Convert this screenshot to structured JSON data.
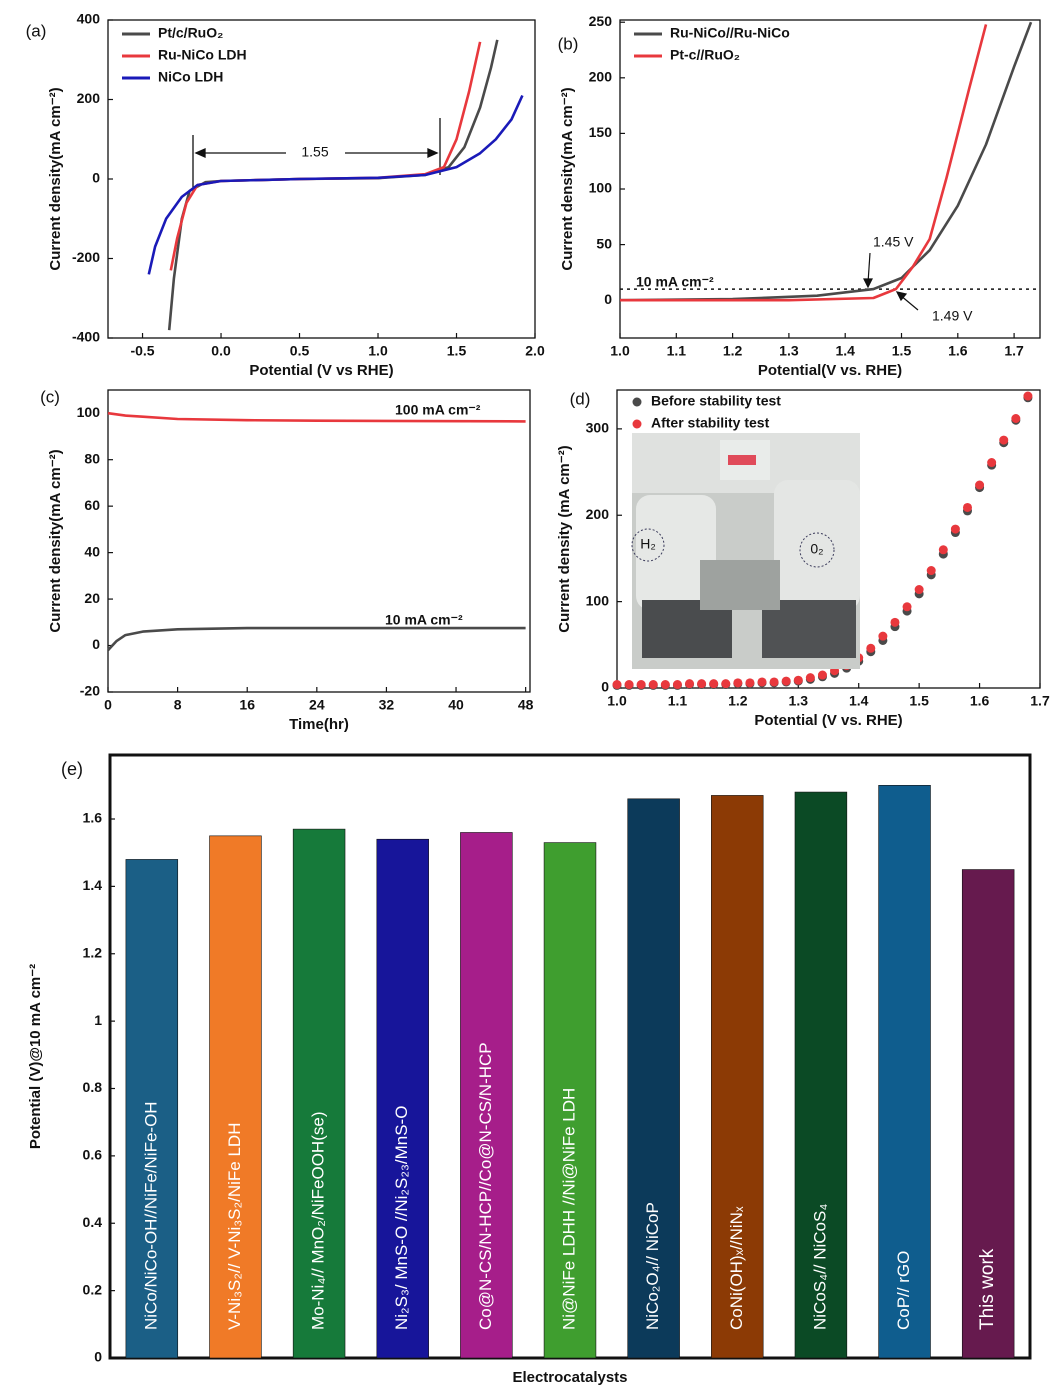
{
  "chart_data": [
    {
      "type": "line",
      "label": "(a)",
      "x_label": "Potential (V vs RHE)",
      "y_label": "Current density(mA cm⁻²)",
      "xlim": [
        -0.72,
        2.0
      ],
      "xticks": [
        -0.5,
        {
          "value": 0,
          "label": "0.0"
        },
        0.5,
        {
          "value": 1,
          "label": "1.0"
        },
        1.5,
        {
          "value": 2,
          "label": "2.0"
        }
      ],
      "ylim": [
        -400,
        400
      ],
      "yticks": [
        -400,
        -200,
        0,
        200,
        400
      ],
      "legend": "top-left",
      "annotations": [
        "1.55"
      ],
      "series": [
        {
          "name": "Pt/c/RuO₂",
          "color": "#4a4a4a",
          "x": [
            -0.33,
            -0.3,
            -0.25,
            -0.2,
            -0.1,
            0,
            0.5,
            1.0,
            1.3,
            1.45,
            1.55,
            1.65,
            1.72,
            1.76
          ],
          "values": [
            -380,
            -250,
            -100,
            -30,
            -8,
            -5,
            0,
            2,
            10,
            30,
            80,
            180,
            280,
            350
          ]
        },
        {
          "name": "Ru-NiCo LDH",
          "color": "#e8383d",
          "x": [
            -0.32,
            -0.28,
            -0.22,
            -0.15,
            0,
            0.5,
            1.0,
            1.3,
            1.42,
            1.5,
            1.58,
            1.65
          ],
          "values": [
            -230,
            -150,
            -60,
            -15,
            -5,
            0,
            3,
            12,
            30,
            100,
            220,
            345
          ]
        },
        {
          "name": "NiCo LDH",
          "color": "#1a1ab8",
          "x": [
            -0.46,
            -0.42,
            -0.35,
            -0.25,
            -0.15,
            0,
            0.5,
            1.0,
            1.3,
            1.5,
            1.65,
            1.75,
            1.85,
            1.92
          ],
          "values": [
            -240,
            -170,
            -100,
            -45,
            -15,
            -5,
            0,
            3,
            10,
            30,
            65,
            100,
            150,
            210
          ]
        }
      ]
    },
    {
      "type": "line",
      "label": "(b)",
      "x_label": "Potential(V vs. RHE)",
      "y_label": "Current density(mA cm⁻²)",
      "xlim": [
        1.0,
        1.746
      ],
      "xticks": [
        {
          "value": 1,
          "label": "1.0"
        },
        1.1,
        1.2,
        1.3,
        1.4,
        1.5,
        1.6,
        1.7
      ],
      "ylim": [
        -34,
        252
      ],
      "yticks": [
        0,
        50,
        100,
        150,
        200,
        250
      ],
      "legend": "top-left",
      "reference_line": 10,
      "annotations": [
        "10 mA cm⁻²",
        "1.45 V",
        "1.49 V"
      ],
      "series": [
        {
          "name": "Ru-NiCo//Ru-NiCo",
          "color": "#4a4a4a",
          "x": [
            1.0,
            1.2,
            1.35,
            1.45,
            1.5,
            1.55,
            1.6,
            1.65,
            1.7,
            1.73
          ],
          "values": [
            0,
            1,
            4,
            10,
            20,
            45,
            85,
            140,
            210,
            250
          ]
        },
        {
          "name": "Pt-c//RuO₂",
          "color": "#e8383d",
          "x": [
            1.0,
            1.3,
            1.45,
            1.49,
            1.52,
            1.55,
            1.58,
            1.62,
            1.65
          ],
          "values": [
            0,
            0,
            2,
            10,
            30,
            55,
            110,
            190,
            248
          ]
        }
      ]
    },
    {
      "type": "line",
      "label": "(c)",
      "x_label": "Time(hr)",
      "y_label": "Current density(mA cm⁻²)",
      "xlim": [
        0,
        48.5
      ],
      "xticks": [
        0,
        8,
        16,
        24,
        32,
        40,
        48
      ],
      "ylim": [
        -20,
        110
      ],
      "yticks": [
        -20,
        0,
        20,
        40,
        60,
        80,
        100
      ],
      "annotations": [
        "100 mA cm⁻²",
        "10 mA cm⁻²"
      ],
      "series": [
        {
          "color": "#e8383d",
          "x": [
            0,
            2,
            4,
            8,
            16,
            24,
            48
          ],
          "values": [
            100,
            99,
            98.5,
            97.5,
            97,
            96.8,
            96.5
          ]
        },
        {
          "color": "#4a4a4a",
          "x": [
            0,
            1,
            2,
            4,
            8,
            16,
            48
          ],
          "values": [
            -2,
            2,
            4.5,
            6,
            7,
            7.5,
            7.5
          ]
        }
      ]
    },
    {
      "type": "scatter",
      "label": "(d)",
      "x_label": "Potential (V vs. RHE)",
      "y_label": "Current density (mA cm⁻²)",
      "xlim": [
        1.0,
        1.7
      ],
      "xticks": [
        {
          "value": 1,
          "label": "1.0"
        },
        1.1,
        1.2,
        1.3,
        1.4,
        1.5,
        1.6,
        1.7
      ],
      "ylim": [
        0,
        345
      ],
      "yticks": [
        0,
        100,
        200,
        300
      ],
      "legend": "top-left",
      "annotations": [
        "H₂",
        "0₂"
      ],
      "x": [
        1.0,
        1.02,
        1.04,
        1.06,
        1.08,
        1.1,
        1.12,
        1.14,
        1.16,
        1.18,
        1.2,
        1.22,
        1.24,
        1.26,
        1.28,
        1.3,
        1.32,
        1.34,
        1.36,
        1.38,
        1.4,
        1.42,
        1.44,
        1.46,
        1.48,
        1.5,
        1.52,
        1.54,
        1.56,
        1.58,
        1.6,
        1.62,
        1.64,
        1.66,
        1.68
      ],
      "series": [
        {
          "name": "Before stability test",
          "color": "#4a4a4a",
          "values": [
            3,
            3,
            3,
            3,
            3,
            3,
            4,
            4,
            4,
            4,
            5,
            5,
            6,
            6,
            7,
            8,
            10,
            13,
            17,
            23,
            31,
            42,
            55,
            71,
            89,
            109,
            131,
            155,
            180,
            205,
            232,
            258,
            284,
            310,
            336
          ]
        },
        {
          "name": "After stability test",
          "color": "#e8383d",
          "values": [
            4,
            4,
            4,
            4,
            4,
            4,
            5,
            5,
            5,
            5,
            6,
            6,
            7,
            7,
            8,
            9,
            12,
            15,
            20,
            26,
            35,
            46,
            60,
            76,
            94,
            114,
            136,
            160,
            184,
            209,
            235,
            261,
            287,
            312,
            338
          ]
        }
      ]
    },
    {
      "type": "bar",
      "label": "(e)",
      "x_label": "Electrocatalysts",
      "y_label": "Potential (V)@10 mA cm⁻²",
      "ylim": [
        0,
        1.79
      ],
      "yticks": [
        0,
        0.2,
        0.4,
        0.6,
        0.8,
        1,
        1.2,
        1.4,
        1.6
      ],
      "categories": [
        "NiCo/NiCo-OH//NiFe/NiFe-OH",
        "V-Ni₃S₂// V-Ni₃S₂/NiFe LDH",
        "Mo-Ni₄// MnO₂/NiFeOOH(se)",
        "Ni₂S₃/ MnS-O //Ni₂S₂₃/MnS-O",
        "Co@N-CS/N-HCP//Co@N-CS/N-HCP",
        "Ni@NiFe LDHH //Ni@NiFe LDH",
        "NiCo₂O₄// NiCoP",
        "CoNi(OH)ₓ//NiNₓ",
        "NiCoS₄// NiCoS₄",
        "CoP// rGO",
        "This work"
      ],
      "values": [
        1.48,
        1.55,
        1.57,
        1.54,
        1.56,
        1.53,
        1.66,
        1.67,
        1.68,
        1.7,
        1.45
      ],
      "colors": [
        "#1b5f86",
        "#f07a27",
        "#167a3a",
        "#17159a",
        "#a61e8a",
        "#3f9e2f",
        "#0c3a5a",
        "#8c3a05",
        "#0b4a25",
        "#0f5d8e",
        "#661a4e"
      ]
    }
  ]
}
